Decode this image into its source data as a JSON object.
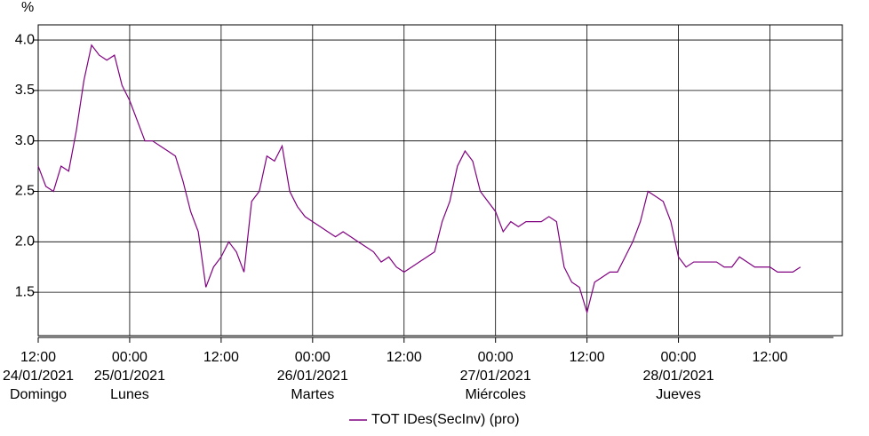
{
  "chart_data": {
    "type": "line",
    "y_label": "%",
    "xlim": [
      "24/01/2021 12:00",
      "28/01/2021 21:30"
    ],
    "ylim": [
      1.07,
      4.15
    ],
    "grid": true,
    "yticks": [
      1.5,
      {
        "value": 2,
        "label": "2.0"
      },
      2.5,
      {
        "value": 3,
        "label": "3.0"
      },
      3.5,
      {
        "value": 4,
        "label": "4.0"
      }
    ],
    "xticks": [
      {
        "value": "24/01/2021 12:00",
        "label": "12:00"
      },
      {
        "value": "25/01/2021 00:00",
        "label": "00:00"
      },
      {
        "value": "25/01/2021 12:00",
        "label": "12:00"
      },
      {
        "value": "26/01/2021 00:00",
        "label": "00:00"
      },
      {
        "value": "26/01/2021 12:00",
        "label": "12:00"
      },
      {
        "value": "27/01/2021 00:00",
        "label": "00:00"
      },
      {
        "value": "27/01/2021 12:00",
        "label": "12:00"
      },
      {
        "value": "28/01/2021 00:00",
        "label": "00:00"
      },
      {
        "value": "28/01/2021 12:00",
        "label": "12:00"
      }
    ],
    "date_labels": [
      {
        "value": "24/01/2021 12:00",
        "label": "24/01/2021",
        "day": "Domingo"
      },
      {
        "value": "25/01/2021 00:00",
        "label": "25/01/2021",
        "day": "Lunes"
      },
      {
        "value": "26/01/2021 00:00",
        "label": "26/01/2021",
        "day": "Martes"
      },
      {
        "value": "27/01/2021 00:00",
        "label": "27/01/2021",
        "day": "Miércoles"
      },
      {
        "value": "28/01/2021 00:00",
        "label": "28/01/2021",
        "day": "Jueves"
      }
    ],
    "x": [
      "24/01/2021 12:00",
      "24/01/2021 13:00",
      "24/01/2021 14:00",
      "24/01/2021 15:00",
      "24/01/2021 16:00",
      "24/01/2021 17:00",
      "24/01/2021 18:00",
      "24/01/2021 19:00",
      "24/01/2021 20:00",
      "24/01/2021 21:00",
      "24/01/2021 22:00",
      "24/01/2021 23:00",
      "25/01/2021 00:00",
      "25/01/2021 01:00",
      "25/01/2021 02:00",
      "25/01/2021 03:00",
      "25/01/2021 04:00",
      "25/01/2021 05:00",
      "25/01/2021 06:00",
      "25/01/2021 07:00",
      "25/01/2021 08:00",
      "25/01/2021 09:00",
      "25/01/2021 10:00",
      "25/01/2021 11:00",
      "25/01/2021 12:00",
      "25/01/2021 13:00",
      "25/01/2021 14:00",
      "25/01/2021 15:00",
      "25/01/2021 16:00",
      "25/01/2021 17:00",
      "25/01/2021 18:00",
      "25/01/2021 19:00",
      "25/01/2021 20:00",
      "25/01/2021 21:00",
      "25/01/2021 22:00",
      "25/01/2021 23:00",
      "26/01/2021 00:00",
      "26/01/2021 01:00",
      "26/01/2021 02:00",
      "26/01/2021 03:00",
      "26/01/2021 04:00",
      "26/01/2021 05:00",
      "26/01/2021 06:00",
      "26/01/2021 07:00",
      "26/01/2021 08:00",
      "26/01/2021 09:00",
      "26/01/2021 10:00",
      "26/01/2021 11:00",
      "26/01/2021 12:00",
      "26/01/2021 13:00",
      "26/01/2021 14:00",
      "26/01/2021 15:00",
      "26/01/2021 16:00",
      "26/01/2021 17:00",
      "26/01/2021 18:00",
      "26/01/2021 19:00",
      "26/01/2021 20:00",
      "26/01/2021 21:00",
      "26/01/2021 22:00",
      "26/01/2021 23:00",
      "27/01/2021 00:00",
      "27/01/2021 01:00",
      "27/01/2021 02:00",
      "27/01/2021 03:00",
      "27/01/2021 04:00",
      "27/01/2021 05:00",
      "27/01/2021 06:00",
      "27/01/2021 07:00",
      "27/01/2021 08:00",
      "27/01/2021 09:00",
      "27/01/2021 10:00",
      "27/01/2021 11:00",
      "27/01/2021 12:00",
      "27/01/2021 13:00",
      "27/01/2021 14:00",
      "27/01/2021 15:00",
      "27/01/2021 16:00",
      "27/01/2021 17:00",
      "27/01/2021 18:00",
      "27/01/2021 19:00",
      "27/01/2021 20:00",
      "27/01/2021 21:00",
      "27/01/2021 22:00",
      "27/01/2021 23:00",
      "28/01/2021 00:00",
      "28/01/2021 01:00",
      "28/01/2021 02:00",
      "28/01/2021 03:00",
      "28/01/2021 04:00",
      "28/01/2021 05:00",
      "28/01/2021 06:00",
      "28/01/2021 07:00",
      "28/01/2021 08:00",
      "28/01/2021 09:00",
      "28/01/2021 10:00",
      "28/01/2021 11:00",
      "28/01/2021 12:00",
      "28/01/2021 13:00",
      "28/01/2021 14:00",
      "28/01/2021 15:00",
      "28/01/2021 16:00"
    ],
    "series": [
      {
        "name": "TOT IDes(SecInv) (pro)",
        "color": "#800080",
        "values": [
          2.75,
          2.55,
          2.5,
          2.75,
          2.7,
          3.1,
          3.6,
          3.95,
          3.85,
          3.8,
          3.85,
          3.55,
          3.4,
          3.2,
          3.0,
          3.0,
          2.95,
          2.9,
          2.85,
          2.6,
          2.3,
          2.1,
          1.55,
          1.75,
          1.85,
          2.0,
          1.9,
          1.7,
          2.4,
          2.5,
          2.85,
          2.8,
          2.95,
          2.5,
          2.35,
          2.25,
          2.2,
          2.15,
          2.1,
          2.05,
          2.1,
          2.05,
          2.0,
          1.95,
          1.9,
          1.8,
          1.85,
          1.75,
          1.7,
          1.75,
          1.8,
          1.85,
          1.9,
          2.2,
          2.4,
          2.75,
          2.9,
          2.8,
          2.5,
          2.4,
          2.3,
          2.1,
          2.2,
          2.15,
          2.2,
          2.2,
          2.2,
          2.25,
          2.2,
          1.75,
          1.6,
          1.55,
          1.3,
          1.6,
          1.65,
          1.7,
          1.7,
          1.85,
          2.0,
          2.2,
          2.5,
          2.45,
          2.4,
          2.2,
          1.85,
          1.75,
          1.8,
          1.8,
          1.8,
          1.8,
          1.75,
          1.75,
          1.85,
          1.8,
          1.75,
          1.75,
          1.75,
          1.7,
          1.7,
          1.7,
          1.75
        ]
      }
    ]
  }
}
